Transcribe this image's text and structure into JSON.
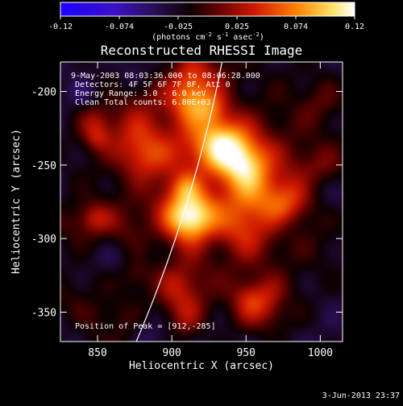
{
  "colorbar": {
    "ticks": [
      "-0.12",
      "-0.074",
      "-0.025",
      "0.025",
      "0.074",
      "0.12"
    ],
    "units_prefix": "(photons cm",
    "units_exp1": "-2",
    "units_mid": " s",
    "units_exp2": "-1",
    "units_mid2": " asec",
    "units_exp3": "-2",
    "units_suffix": ")"
  },
  "chart_data": {
    "type": "heatmap",
    "title": "Reconstructed RHESSI Image",
    "xlabel": "Heliocentric X (arcsec)",
    "ylabel": "Heliocentric Y (arcsec)",
    "xlim": [
      825,
      1015
    ],
    "ylim": [
      -370,
      -180
    ],
    "x_ticks": [
      850,
      900,
      950,
      1000
    ],
    "y_ticks": [
      -200,
      -250,
      -300,
      -350
    ],
    "value_range": [
      -0.12,
      0.12
    ],
    "colormap": "rhessi-thermal",
    "sources": [
      {
        "x": 912,
        "y": -285,
        "amplitude": 0.12
      },
      {
        "x": 950,
        "y": -250,
        "amplitude": 0.085
      },
      {
        "x": 935,
        "y": -235,
        "amplitude": 0.075
      },
      {
        "x": 915,
        "y": -205,
        "amplitude": 0.06
      },
      {
        "x": 880,
        "y": -245,
        "amplitude": 0.05
      },
      {
        "x": 975,
        "y": -275,
        "amplitude": 0.055
      },
      {
        "x": 965,
        "y": -345,
        "amplitude": 0.05
      },
      {
        "x": 905,
        "y": -335,
        "amplitude": 0.04
      }
    ],
    "annotations": [
      "9-May-2003 08:03:36.000 to 08:06:28.000",
      "Detectors: 4F 5F 6F 7F 8F, Att 0",
      "Energy Range: 3.0 - 6.0 keV",
      "Clean     Total counts: 6.80E+03"
    ],
    "peak_label": "Position of Peak = [912,-285]",
    "limb_color": "#ffffff"
  },
  "footer": {
    "timestamp": "3-Jun-2013 23:37"
  }
}
